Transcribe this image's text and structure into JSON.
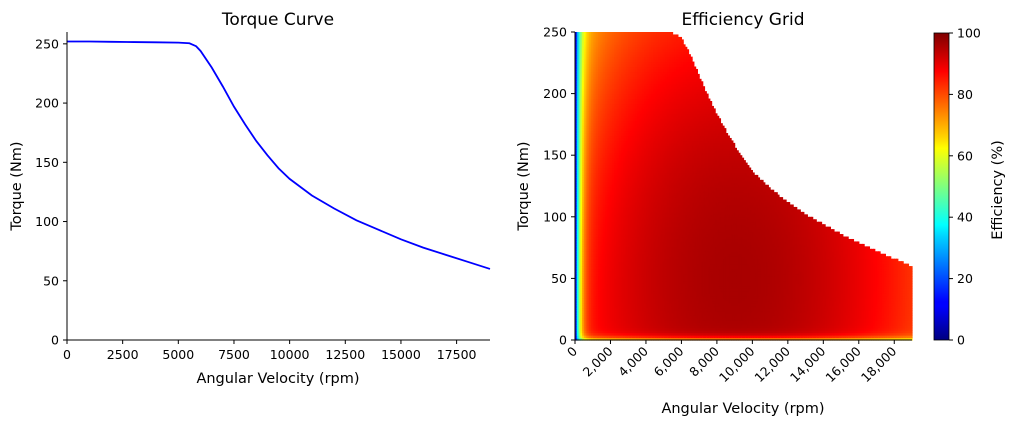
{
  "chart_data": [
    {
      "type": "line",
      "title": "Torque Curve",
      "xlabel": "Angular Velocity (rpm)",
      "ylabel": "Torque (Nm)",
      "xlim": [
        0,
        19000
      ],
      "ylim": [
        0,
        260
      ],
      "xticks": [
        "0",
        "2500",
        "5000",
        "7500",
        "10000",
        "12500",
        "15000",
        "17500"
      ],
      "yticks": [
        "0",
        "50",
        "100",
        "150",
        "200",
        "250"
      ],
      "series": [
        {
          "color": "#0000ff",
          "x": [
            0,
            1000,
            2000,
            3000,
            4000,
            5000,
            5500,
            5800,
            6000,
            6500,
            7000,
            7500,
            8000,
            8500,
            9000,
            9500,
            10000,
            11000,
            12000,
            13000,
            14000,
            15000,
            16000,
            17000,
            18000,
            19000
          ],
          "y": [
            252,
            252,
            251.7,
            251.5,
            251.3,
            251,
            250.5,
            248,
            244,
            230,
            214,
            197,
            182,
            168,
            156,
            145,
            136,
            122,
            111,
            101,
            93,
            85,
            78,
            72,
            66,
            60
          ]
        }
      ]
    },
    {
      "type": "heatmap",
      "title": "Efficiency Grid",
      "xlabel": "Angular Velocity (rpm)",
      "ylabel": "Torque (Nm)",
      "xlim": [
        0,
        19000
      ],
      "ylim": [
        0,
        250
      ],
      "xticks": [
        "0",
        "2,000",
        "4,000",
        "6,000",
        "8,000",
        "10,000",
        "12,000",
        "14,000",
        "16,000",
        "18,000"
      ],
      "yticks": [
        "0",
        "50",
        "100",
        "150",
        "200",
        "250"
      ],
      "colormap": "jet",
      "colorbar": {
        "label": "Efficiency (%)",
        "range": [
          0,
          100
        ],
        "ticks": [
          "0",
          "20",
          "40",
          "60",
          "80",
          "100"
        ]
      },
      "boundary": {
        "x": [
          0,
          4000,
          4500,
          5000,
          5500,
          6000,
          6500,
          7000,
          7500,
          8000,
          8500,
          9000,
          9500,
          10000,
          11000,
          12000,
          13000,
          14000,
          15000,
          16000,
          17000,
          18000,
          19000
        ],
        "max_torque": [
          250,
          250,
          250,
          250,
          249,
          245,
          231,
          214,
          198,
          183,
          170,
          158,
          147,
          137,
          123,
          112,
          102,
          94,
          86,
          79,
          72,
          66,
          60
        ]
      },
      "peak_efficiency": 96,
      "min_efficiency": 0
    }
  ]
}
